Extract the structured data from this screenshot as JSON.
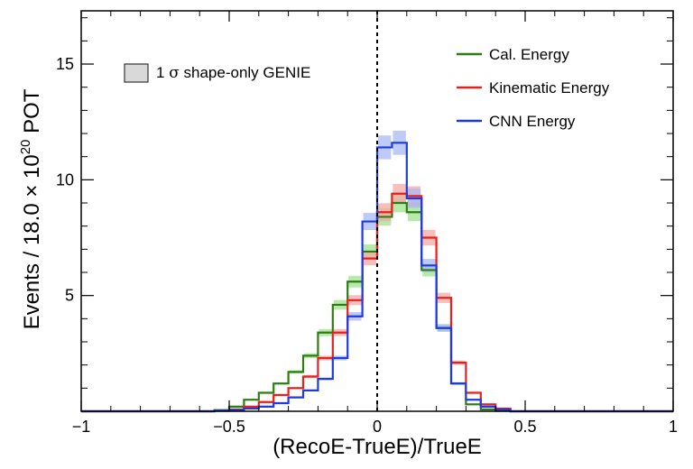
{
  "chart_data": {
    "type": "line",
    "style": "step histogram",
    "title": "",
    "xlabel": "(RecoE-TrueE)/TrueE",
    "ylabel_parts": {
      "prefix": "Events / 18.0 × 10",
      "exponent": "20",
      "suffix": " POT"
    },
    "xlim": [
      -1,
      1
    ],
    "ylim": [
      0,
      17.3
    ],
    "x_ticks": [
      -1,
      -0.5,
      0,
      0.5,
      1
    ],
    "x_tick_labels": [
      "−1",
      "−0.5",
      "0",
      "0.5",
      "1"
    ],
    "y_ticks": [
      5,
      10,
      15
    ],
    "y_tick_labels": [
      "5",
      "10",
      "15"
    ],
    "grid": false,
    "legend_position": "top-right",
    "reference_line": {
      "x": 0,
      "style": "dashed",
      "color": "#000000"
    },
    "band_legend": {
      "symbol": "σ",
      "prefix": "1 ",
      "suffix": " shape-only GENIE",
      "color": "#d9d9d9"
    },
    "bin_edges": [
      -0.55,
      -0.5,
      -0.45,
      -0.4,
      -0.35,
      -0.3,
      -0.25,
      -0.2,
      -0.15,
      -0.1,
      -0.05,
      0,
      0.05,
      0.1,
      0.15,
      0.2,
      0.25,
      0.3,
      0.35,
      0.4,
      0.45
    ],
    "series": [
      {
        "name": "Cal. Energy",
        "color": "#2e7d12",
        "band_color": "#9fe18f",
        "values": [
          0.05,
          0.2,
          0.5,
          0.8,
          1.2,
          1.7,
          2.4,
          3.4,
          4.6,
          5.6,
          6.9,
          8.4,
          9.0,
          8.6,
          6.1,
          3.6,
          1.2,
          0.3,
          0.08,
          0.02
        ]
      },
      {
        "name": "Kinematic Energy",
        "color": "#e8201c",
        "band_color": "#f4a8a4",
        "values": [
          0.02,
          0.08,
          0.2,
          0.4,
          0.7,
          1.0,
          1.5,
          2.3,
          3.4,
          4.8,
          6.6,
          8.6,
          9.4,
          9.3,
          7.5,
          4.9,
          2.1,
          0.8,
          0.3,
          0.12
        ]
      },
      {
        "name": "CNN Energy",
        "color": "#1e3ae0",
        "band_color": "#a8b8f4",
        "values": [
          0.03,
          0.06,
          0.12,
          0.2,
          0.35,
          0.6,
          0.9,
          1.4,
          2.3,
          4.1,
          8.2,
          11.4,
          11.6,
          9.2,
          6.3,
          3.6,
          1.2,
          0.5,
          0.2,
          0.08
        ]
      }
    ]
  }
}
